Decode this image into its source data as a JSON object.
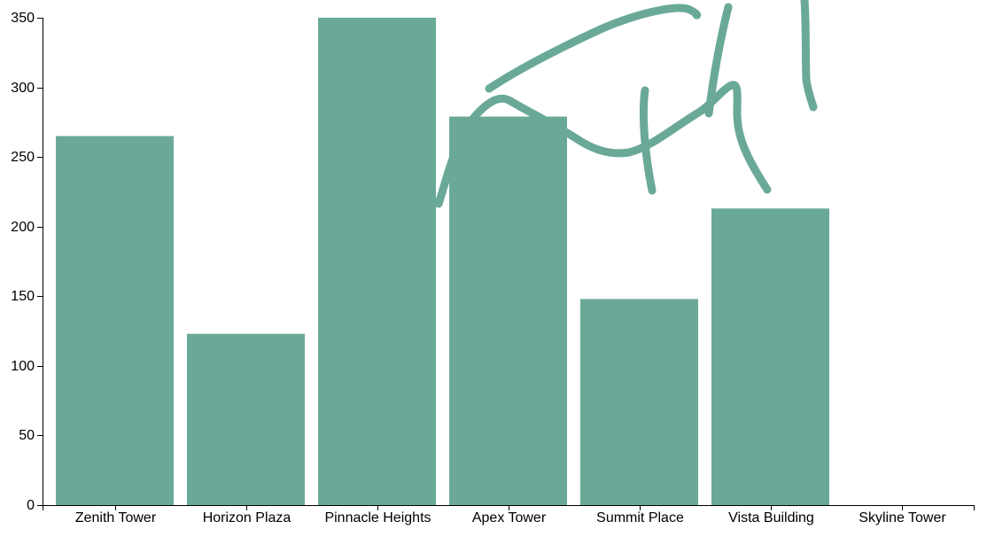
{
  "chart_data": {
    "type": "bar",
    "title": "",
    "xlabel": "",
    "ylabel": "",
    "categories": [
      "Zenith Tower",
      "Horizon Plaza",
      "Pinnacle Heights",
      "Apex Tower",
      "Summit Place",
      "Vista Building",
      "Skyline Tower"
    ],
    "values": [
      265,
      123,
      350,
      279,
      148,
      213,
      0
    ],
    "ylim": [
      0,
      350
    ],
    "yticks": [
      0,
      50,
      100,
      150,
      200,
      250,
      300,
      350
    ],
    "grid": false,
    "legend": "none",
    "bar_color": "#6aa998"
  },
  "annotations": {
    "description": "freehand pen scribbles drawn over the chart",
    "stroke_color": "#6aa998"
  }
}
